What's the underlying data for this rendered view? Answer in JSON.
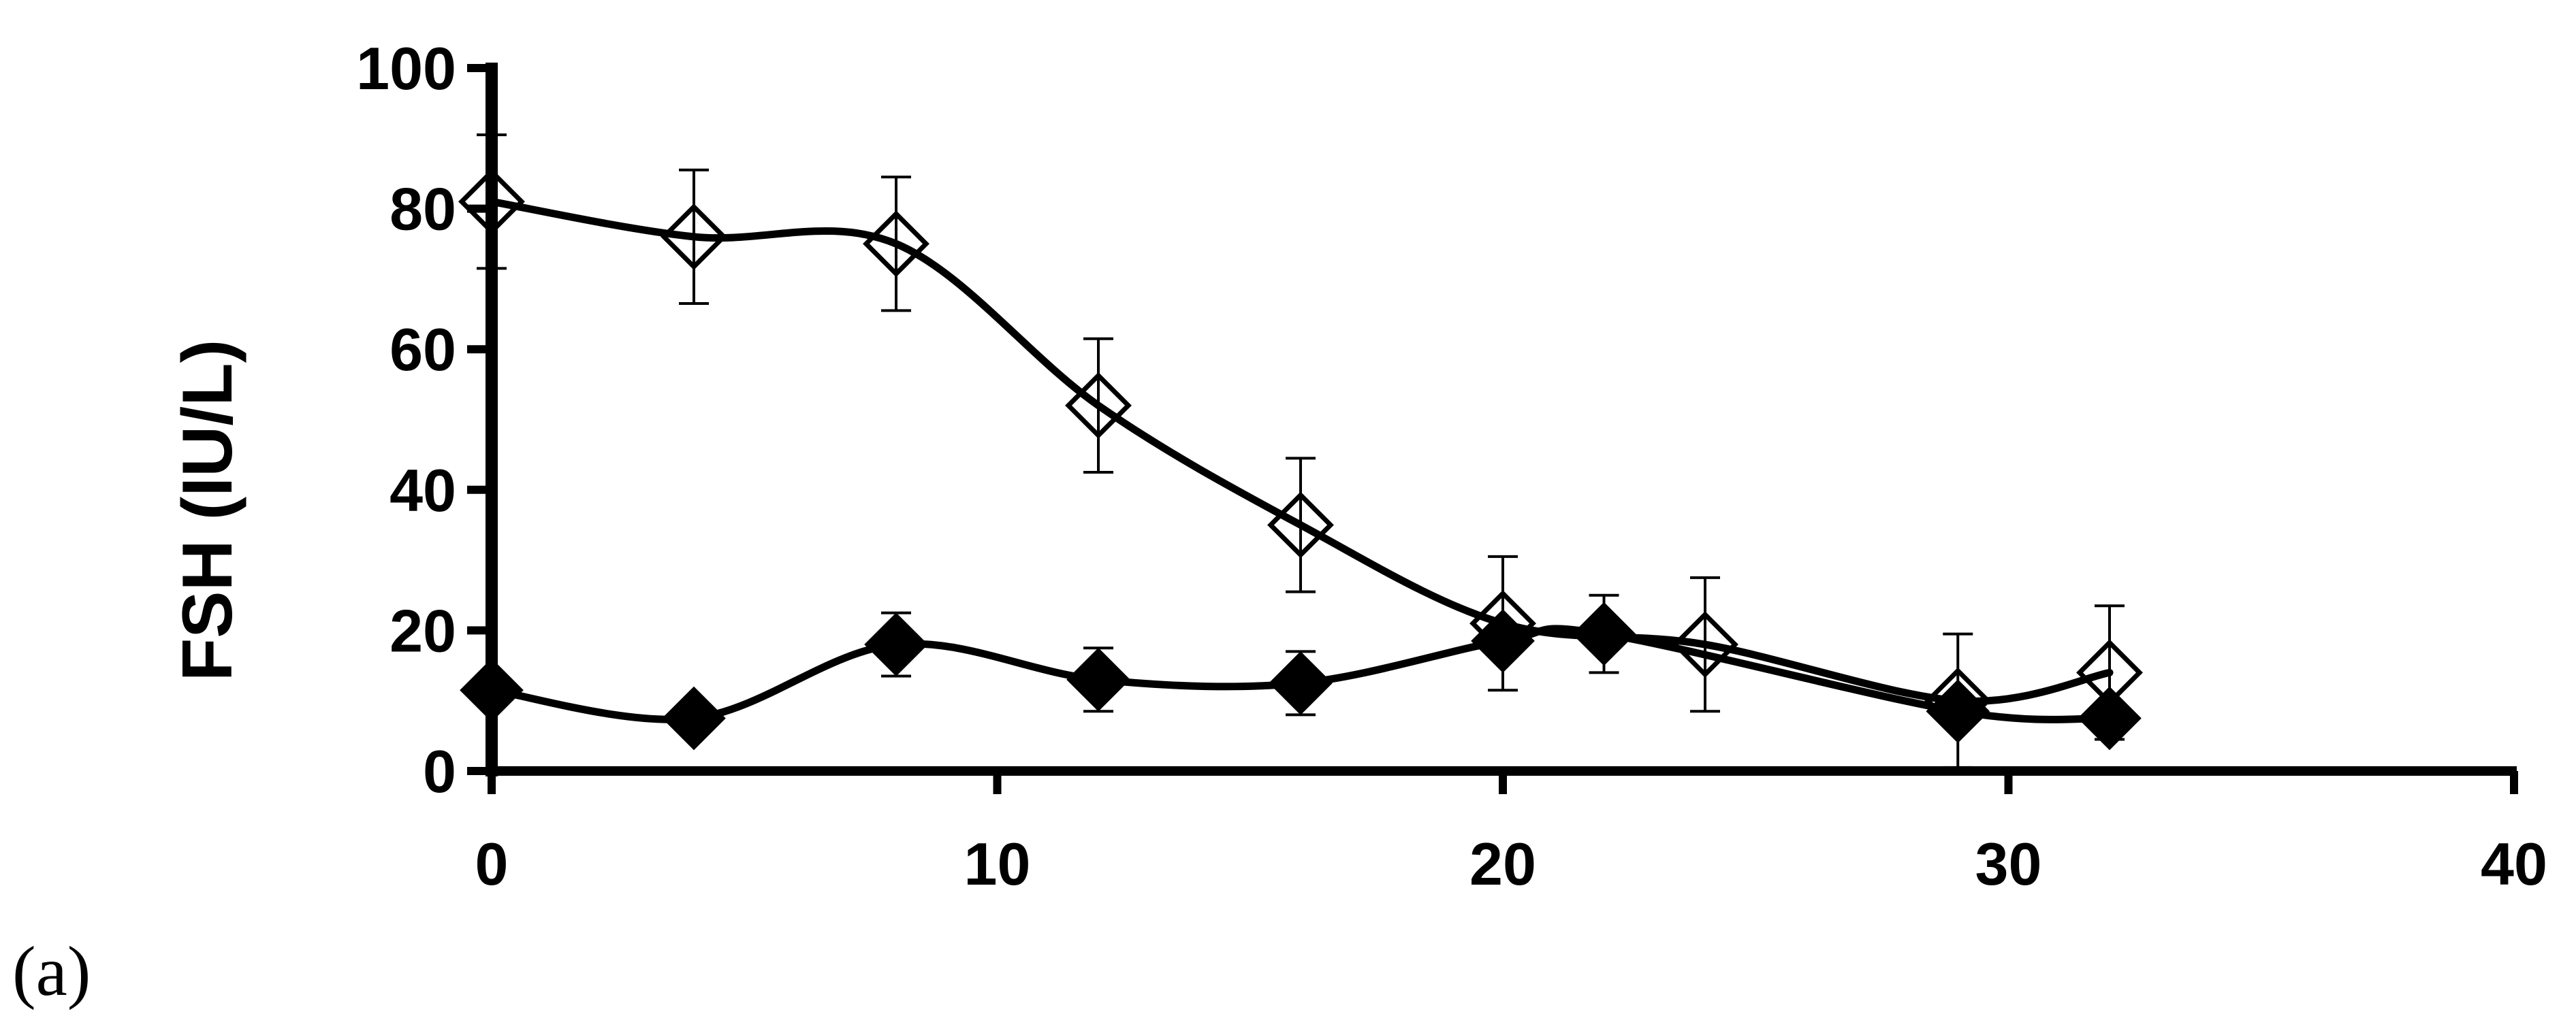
{
  "panel_label": "(a)",
  "chart_data": {
    "type": "line",
    "title": "",
    "xlabel": "",
    "ylabel": "FSH (IU/L)",
    "xlim": [
      0,
      40
    ],
    "ylim": [
      0,
      100
    ],
    "xticks": [
      0,
      10,
      20,
      30,
      40
    ],
    "yticks": [
      0,
      20,
      40,
      60,
      80,
      100
    ],
    "grid": false,
    "legend": "none",
    "smoothed_lines": true,
    "series": [
      {
        "marker": "open-diamond",
        "color": "#000000",
        "x": [
          0,
          4,
          8,
          12,
          16,
          20,
          24,
          29,
          32
        ],
        "y": [
          81,
          76,
          75,
          52,
          35,
          21,
          18,
          10,
          14
        ],
        "error": [
          9.5,
          9.5,
          9.5,
          9.5,
          9.5,
          9.5,
          9.5,
          9.5,
          9.5
        ]
      },
      {
        "marker": "filled-diamond",
        "color": "#000000",
        "x": [
          0,
          4,
          8,
          12,
          16,
          20,
          22,
          29,
          32
        ],
        "y": [
          11.5,
          7.5,
          18,
          13,
          12.5,
          18.5,
          19.5,
          8.5,
          7.5
        ],
        "error": [
          0,
          0,
          4.5,
          4.5,
          4.5,
          0,
          5.5,
          0,
          0
        ]
      }
    ]
  }
}
